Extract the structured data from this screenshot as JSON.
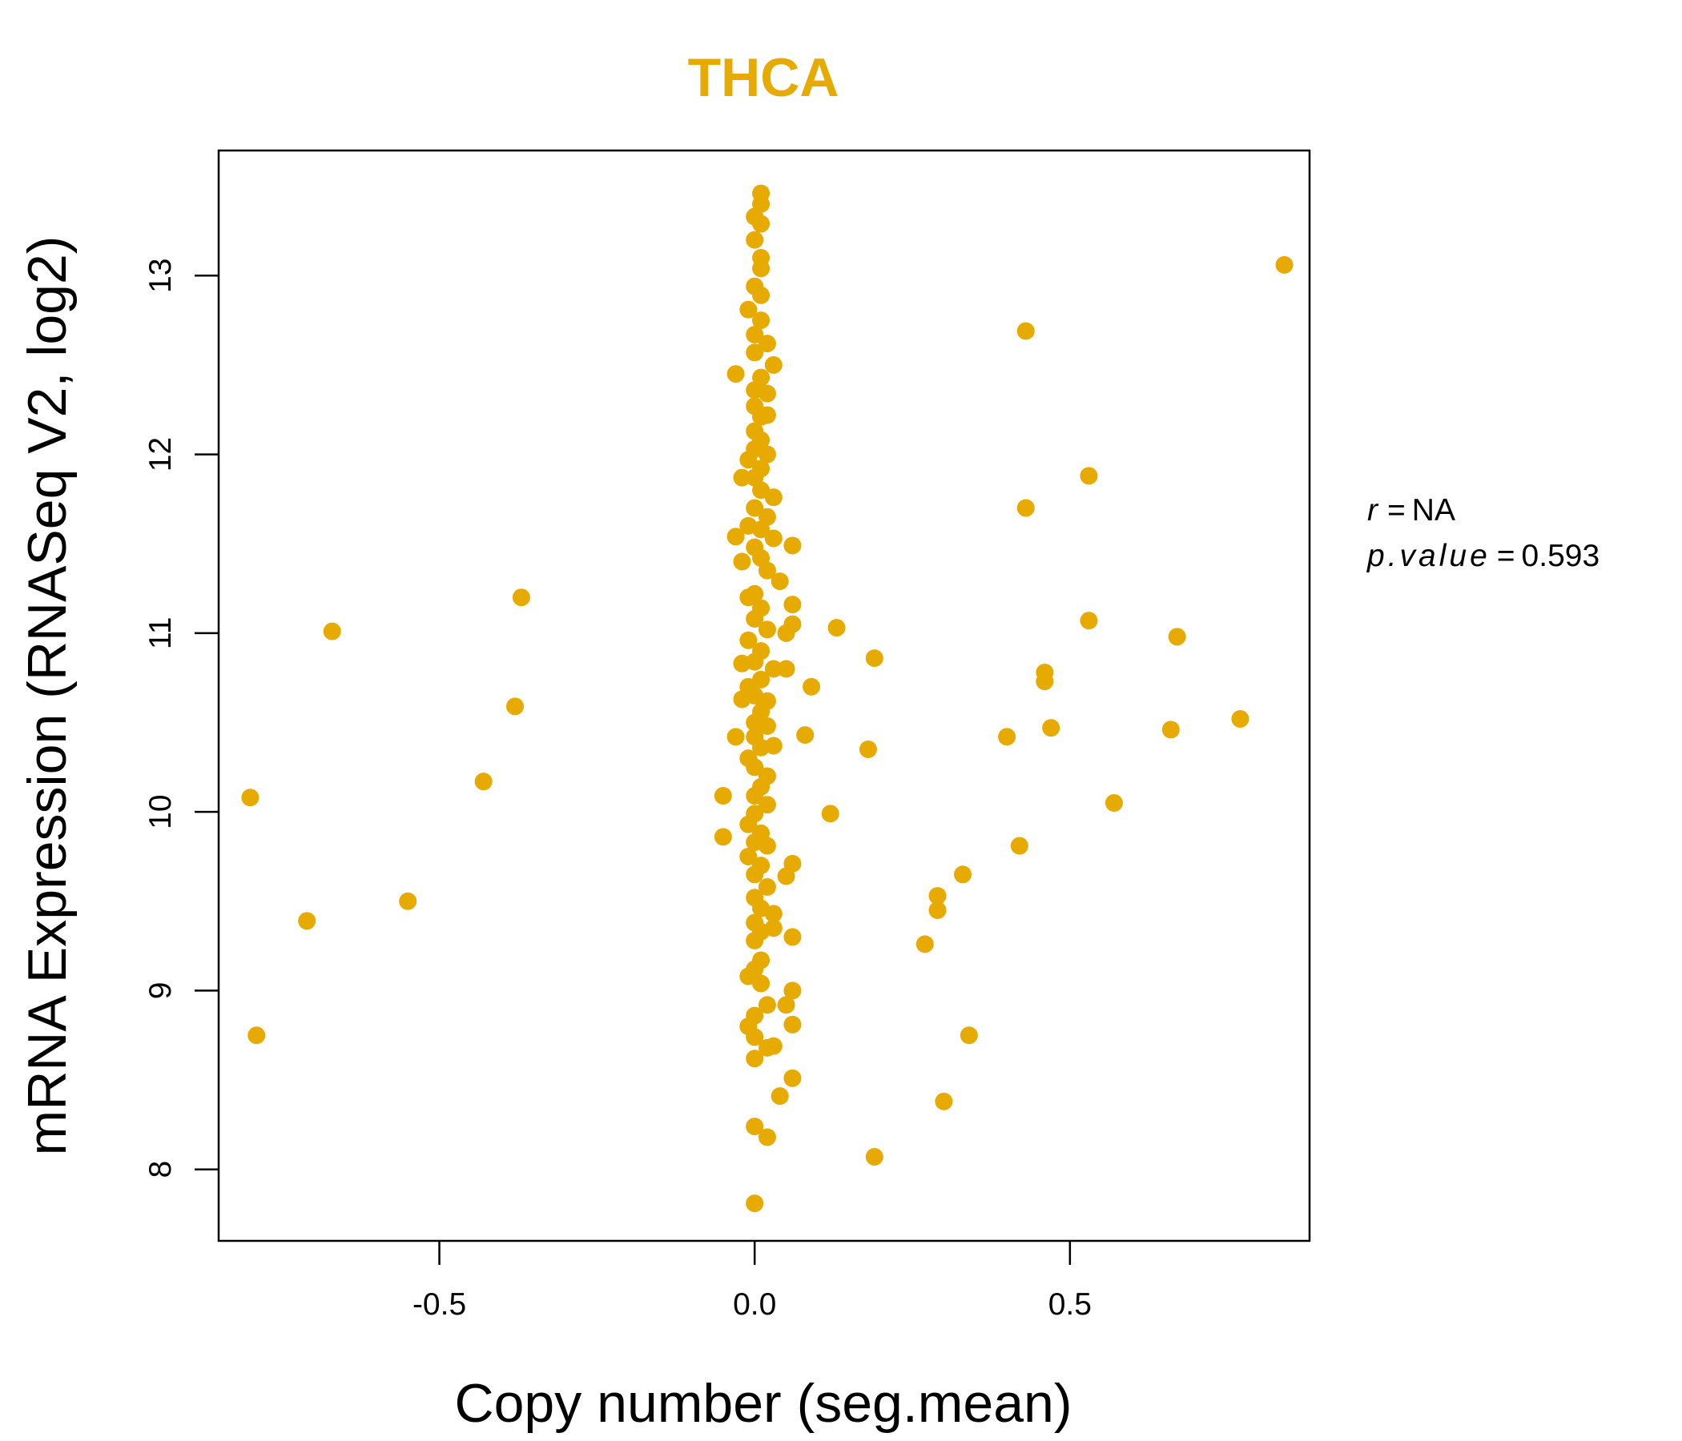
{
  "chart_data": {
    "type": "scatter",
    "title": "THCA",
    "xlabel": "Copy number (seg.mean)",
    "ylabel": "mRNA Expression (RNASeq V2, log2)",
    "xlim": [
      -0.85,
      0.88
    ],
    "ylim": [
      7.6,
      13.7
    ],
    "xticks": [
      -0.5,
      0.0,
      0.5
    ],
    "xtick_labels": [
      "-0.5",
      "0.0",
      "0.5"
    ],
    "yticks": [
      8,
      9,
      10,
      11,
      12,
      13
    ],
    "ytick_labels": [
      "8",
      "9",
      "10",
      "11",
      "12",
      "13"
    ],
    "grid": false,
    "point_color": "#E6AA00",
    "annotation": {
      "r_label": "r",
      "r_value": "NA",
      "p_label": "p.value",
      "p_value": "0.593",
      "eq": "="
    },
    "points": [
      [
        0.84,
        13.06
      ],
      [
        0.43,
        12.69
      ],
      [
        0.53,
        11.88
      ],
      [
        0.43,
        11.7
      ],
      [
        0.53,
        11.07
      ],
      [
        0.67,
        10.98
      ],
      [
        0.46,
        10.78
      ],
      [
        0.46,
        10.73
      ],
      [
        0.47,
        10.47
      ],
      [
        0.4,
        10.42
      ],
      [
        0.66,
        10.46
      ],
      [
        0.77,
        10.52
      ],
      [
        0.57,
        10.05
      ],
      [
        0.42,
        9.81
      ],
      [
        0.33,
        9.65
      ],
      [
        0.29,
        9.53
      ],
      [
        0.29,
        9.45
      ],
      [
        0.27,
        9.26
      ],
      [
        0.34,
        8.75
      ],
      [
        0.3,
        8.38
      ],
      [
        0.19,
        8.07
      ],
      [
        0.13,
        11.03
      ],
      [
        0.19,
        10.86
      ],
      [
        0.18,
        10.35
      ],
      [
        0.12,
        9.99
      ],
      [
        -0.37,
        11.2
      ],
      [
        -0.67,
        11.01
      ],
      [
        -0.38,
        10.59
      ],
      [
        -0.43,
        10.17
      ],
      [
        -0.8,
        10.08
      ],
      [
        -0.55,
        9.5
      ],
      [
        -0.71,
        9.39
      ],
      [
        -0.79,
        8.75
      ],
      [
        0.06,
        11.49
      ],
      [
        0.06,
        11.16
      ],
      [
        0.06,
        11.05
      ],
      [
        0.05,
        11.0
      ],
      [
        0.05,
        10.8
      ],
      [
        0.09,
        10.7
      ],
      [
        0.08,
        10.43
      ],
      [
        0.06,
        9.71
      ],
      [
        0.05,
        9.64
      ],
      [
        0.06,
        9.3
      ],
      [
        0.06,
        9.0
      ],
      [
        0.05,
        8.92
      ],
      [
        0.06,
        8.81
      ],
      [
        0.06,
        8.51
      ],
      [
        0.04,
        8.41
      ],
      [
        0.02,
        8.18
      ],
      [
        0.0,
        8.24
      ],
      [
        0.0,
        7.81
      ],
      [
        -0.03,
        12.45
      ],
      [
        -0.03,
        11.54
      ],
      [
        -0.05,
        10.09
      ],
      [
        -0.05,
        9.86
      ],
      [
        -0.03,
        10.42
      ],
      [
        0.01,
        13.46
      ],
      [
        0.01,
        13.4
      ],
      [
        0.0,
        13.33
      ],
      [
        0.01,
        13.29
      ],
      [
        0.0,
        13.2
      ],
      [
        0.01,
        13.1
      ],
      [
        0.01,
        13.04
      ],
      [
        0.0,
        12.94
      ],
      [
        0.01,
        12.89
      ],
      [
        -0.01,
        12.81
      ],
      [
        0.01,
        12.75
      ],
      [
        0.0,
        12.67
      ],
      [
        0.02,
        12.62
      ],
      [
        0.0,
        12.57
      ],
      [
        0.03,
        12.5
      ],
      [
        0.01,
        12.43
      ],
      [
        0.0,
        12.36
      ],
      [
        0.02,
        12.34
      ],
      [
        0.0,
        12.27
      ],
      [
        0.01,
        12.21
      ],
      [
        0.02,
        12.22
      ],
      [
        0.0,
        12.13
      ],
      [
        0.01,
        12.08
      ],
      [
        0.0,
        12.03
      ],
      [
        0.02,
        12.0
      ],
      [
        -0.01,
        11.97
      ],
      [
        0.01,
        11.92
      ],
      [
        0.0,
        11.87
      ],
      [
        -0.02,
        11.87
      ],
      [
        0.01,
        11.8
      ],
      [
        0.03,
        11.76
      ],
      [
        0.0,
        11.7
      ],
      [
        0.02,
        11.65
      ],
      [
        -0.01,
        11.6
      ],
      [
        0.01,
        11.58
      ],
      [
        0.03,
        11.53
      ],
      [
        0.0,
        11.48
      ],
      [
        0.01,
        11.42
      ],
      [
        -0.02,
        11.4
      ],
      [
        0.02,
        11.35
      ],
      [
        0.04,
        11.29
      ],
      [
        0.0,
        11.22
      ],
      [
        -0.01,
        11.2
      ],
      [
        0.01,
        11.14
      ],
      [
        0.0,
        11.08
      ],
      [
        0.02,
        11.02
      ],
      [
        -0.01,
        10.96
      ],
      [
        0.01,
        10.9
      ],
      [
        0.0,
        10.84
      ],
      [
        -0.02,
        10.83
      ],
      [
        0.03,
        10.8
      ],
      [
        0.01,
        10.74
      ],
      [
        -0.01,
        10.7
      ],
      [
        0.0,
        10.65
      ],
      [
        0.02,
        10.62
      ],
      [
        -0.02,
        10.63
      ],
      [
        0.01,
        10.56
      ],
      [
        0.0,
        10.5
      ],
      [
        0.02,
        10.48
      ],
      [
        0.0,
        10.42
      ],
      [
        0.01,
        10.36
      ],
      [
        0.03,
        10.37
      ],
      [
        -0.01,
        10.3
      ],
      [
        0.0,
        10.25
      ],
      [
        0.02,
        10.2
      ],
      [
        0.01,
        10.14
      ],
      [
        0.0,
        10.09
      ],
      [
        0.02,
        10.04
      ],
      [
        0.0,
        9.99
      ],
      [
        -0.01,
        9.93
      ],
      [
        0.01,
        9.88
      ],
      [
        0.0,
        9.83
      ],
      [
        0.02,
        9.81
      ],
      [
        -0.01,
        9.75
      ],
      [
        0.01,
        9.7
      ],
      [
        0.0,
        9.65
      ],
      [
        0.02,
        9.58
      ],
      [
        0.0,
        9.52
      ],
      [
        0.01,
        9.46
      ],
      [
        0.03,
        9.43
      ],
      [
        0.0,
        9.38
      ],
      [
        0.01,
        9.33
      ],
      [
        0.03,
        9.35
      ],
      [
        0.0,
        9.28
      ],
      [
        0.01,
        9.17
      ],
      [
        0.0,
        9.12
      ],
      [
        -0.01,
        9.08
      ],
      [
        0.01,
        9.04
      ],
      [
        0.02,
        8.92
      ],
      [
        0.0,
        8.86
      ],
      [
        -0.01,
        8.8
      ],
      [
        0.0,
        8.74
      ],
      [
        0.02,
        8.68
      ],
      [
        0.03,
        8.69
      ],
      [
        0.0,
        8.62
      ]
    ]
  }
}
